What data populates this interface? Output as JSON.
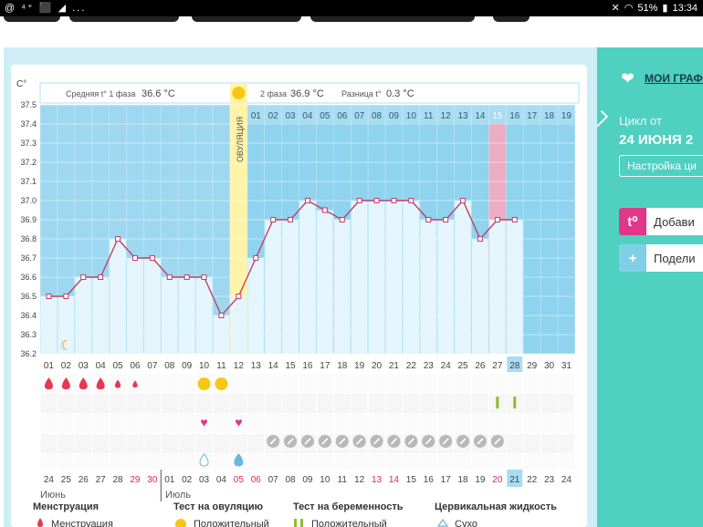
{
  "status_bar": {
    "left_icons": "@ ⁴⁺ ⬛ ◢ ...",
    "battery": "51%",
    "time": "13:34"
  },
  "sidebar": {
    "my_charts": "МОИ ГРАФ",
    "cycle_label": "Цикл от",
    "cycle_date": "24 ИЮНЯ 2",
    "settings_button": "Настройка ци",
    "add_button": "Добави",
    "add_icon": "t⁰",
    "share_button": "Подели",
    "share_icon": "+"
  },
  "chart_header": {
    "y_unit": "C°",
    "phase1_label": "Средняя t° 1 фаза",
    "phase1_value": "36.6 °C",
    "phase2_label": "2 фаза",
    "phase2_value": "36.9 °C",
    "diff_label": "Разница t°",
    "diff_value": "0.3 °C",
    "ovulation_label": "ОВУЛЯЦИЯ"
  },
  "chart_data": {
    "type": "line",
    "ylim": [
      36.2,
      37.5
    ],
    "y_ticks": [
      "37.5",
      "37.4",
      "37.3",
      "37.2",
      "37.1",
      "37.0",
      "36.9",
      "36.8",
      "36.7",
      "36.6",
      "36.5",
      "36.4",
      "36.3",
      "36.2"
    ],
    "top_days": [
      "01",
      "02",
      "03",
      "04",
      "05",
      "06",
      "07",
      "08",
      "09",
      "10",
      "11",
      "12",
      "01",
      "02",
      "03",
      "04",
      "05",
      "06",
      "07",
      "08",
      "09",
      "10",
      "11",
      "12",
      "13",
      "14",
      "15",
      "16",
      "17",
      "18",
      "19"
    ],
    "x_cycle_days": [
      "01",
      "02",
      "03",
      "04",
      "05",
      "06",
      "07",
      "08",
      "09",
      "10",
      "11",
      "12",
      "13",
      "14",
      "15",
      "16",
      "17",
      "18",
      "19",
      "20",
      "21",
      "22",
      "23",
      "24",
      "25",
      "26",
      "27",
      "28",
      "29",
      "30",
      "31"
    ],
    "temperatures": [
      36.5,
      36.5,
      36.6,
      36.6,
      36.8,
      36.7,
      36.7,
      36.6,
      36.6,
      36.6,
      36.4,
      36.5,
      36.7,
      36.9,
      36.9,
      37.0,
      36.95,
      36.9,
      37.0,
      37.0,
      37.0,
      37.0,
      36.9,
      36.9,
      37.0,
      36.8,
      36.9,
      36.9,
      null,
      null,
      null
    ],
    "ovulation_day_index": 11,
    "highlight_pink_day_index": 26,
    "highlight_blue_day_index": 27,
    "calendar_days": [
      "24",
      "25",
      "26",
      "27",
      "28",
      "29",
      "30",
      "01",
      "02",
      "03",
      "04",
      "05",
      "06",
      "07",
      "08",
      "09",
      "10",
      "11",
      "12",
      "13",
      "14",
      "15",
      "16",
      "17",
      "18",
      "19",
      "20",
      "21",
      "22",
      "23",
      "24"
    ],
    "calendar_red_indices": [
      5,
      6,
      11,
      12,
      19,
      20,
      26
    ],
    "calendar_blue_index": 27,
    "month_june": "Июнь",
    "month_july": "Июль",
    "menstruation_days": [
      0,
      1,
      2,
      3,
      4,
      5
    ],
    "ovulation_test_days": [
      9,
      10
    ],
    "pregnancy_test_days": [
      26,
      27
    ],
    "heart_days": [
      9,
      11
    ],
    "pill_days": [
      13,
      14,
      15,
      16,
      17,
      18,
      19,
      20,
      21,
      22,
      23,
      24,
      25,
      26
    ],
    "drop_days": [
      9,
      11
    ],
    "moon_day": 1,
    "colors": {
      "luteal": "#8fd3ef",
      "follicular": "#9ed8f0",
      "ovulation": "#fff3a8",
      "pink": "#f6a9bf",
      "line": "#c0406a",
      "bar": "#e4f5fc"
    }
  },
  "legend": {
    "menstruation_title": "Менструация",
    "menstruation_item": "Менструация",
    "ovulation_test_title": "Тест на овуляцию",
    "ovulation_test_item": "Положительный",
    "pregnancy_test_title": "Тест на беременность",
    "pregnancy_test_item": "Положительный",
    "cervical_title": "Цервикальная жидкость",
    "cervical_item": "Сухо"
  }
}
